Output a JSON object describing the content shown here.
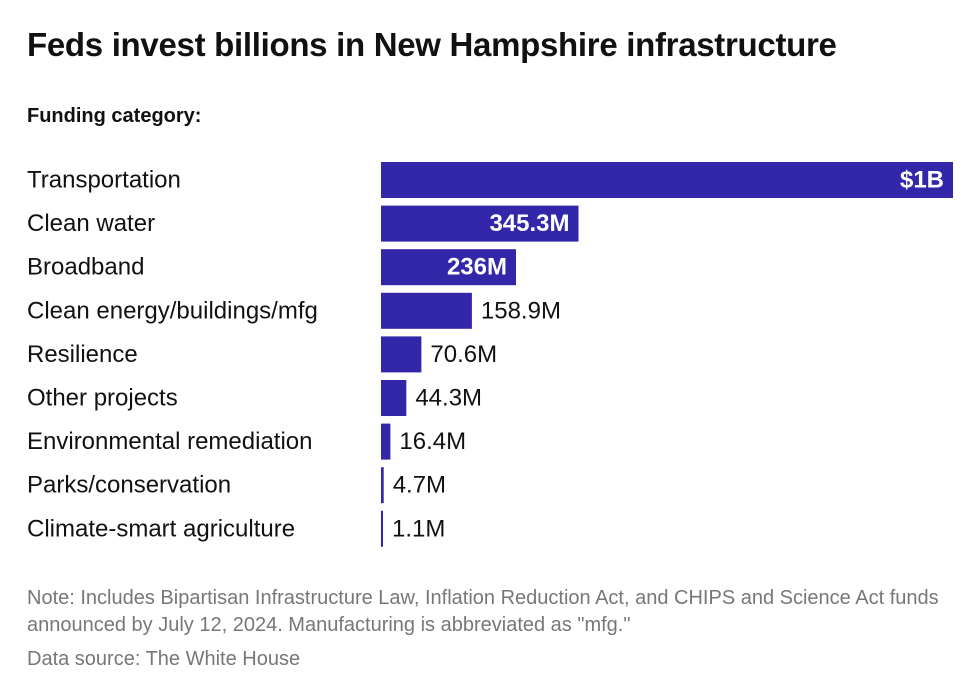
{
  "title": "Feds invest billions in New Hampshire infrastructure",
  "subtitle": "Funding category:",
  "note": "Note: Includes Bipartisan Infrastructure Law, Inflation Reduction Act, and CHIPS and Science Act funds announced by July 12, 2024. Manufacturing is abbreviated as \"mfg.\"",
  "source": "Data source: The White House",
  "colors": {
    "bar": "#3227a8",
    "label_inside": "#ffffff",
    "label_outside": "#111111"
  },
  "chart_data": {
    "type": "bar",
    "orientation": "horizontal",
    "categories": [
      "Transportation",
      "Clean water",
      "Broadband",
      "Clean energy/buildings/mfg",
      "Resilience",
      "Other projects",
      "Environmental remediation",
      "Parks/conservation",
      "Climate-smart agriculture"
    ],
    "values": [
      1000,
      345.3,
      236,
      158.9,
      70.6,
      44.3,
      16.4,
      4.7,
      1.1
    ],
    "value_unit": "million USD",
    "data_labels": [
      "$1B",
      "345.3M",
      "236M",
      "158.9M",
      "70.6M",
      "44.3M",
      "16.4M",
      "4.7M",
      "1.1M"
    ],
    "xlim": [
      0,
      1000
    ],
    "grid": false,
    "legend": "none"
  }
}
